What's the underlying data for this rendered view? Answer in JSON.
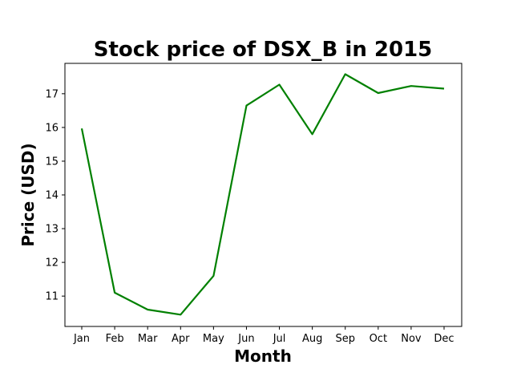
{
  "chart_data": {
    "type": "line",
    "title": "Stock price of DSX_B in 2015",
    "xlabel": "Month",
    "ylabel": "Price (USD)",
    "categories": [
      "Jan",
      "Feb",
      "Mar",
      "Apr",
      "May",
      "Jun",
      "Jul",
      "Aug",
      "Sep",
      "Oct",
      "Nov",
      "Dec"
    ],
    "series": [
      {
        "values": [
          15.97,
          11.1,
          10.6,
          10.45,
          11.6,
          16.65,
          17.27,
          15.8,
          17.58,
          17.02,
          17.23,
          17.15
        ],
        "color": "#008000"
      }
    ],
    "yticks": [
      11,
      12,
      13,
      14,
      15,
      16,
      17
    ],
    "ylim": [
      10.1,
      17.9
    ],
    "grid": false,
    "legend": "none"
  }
}
